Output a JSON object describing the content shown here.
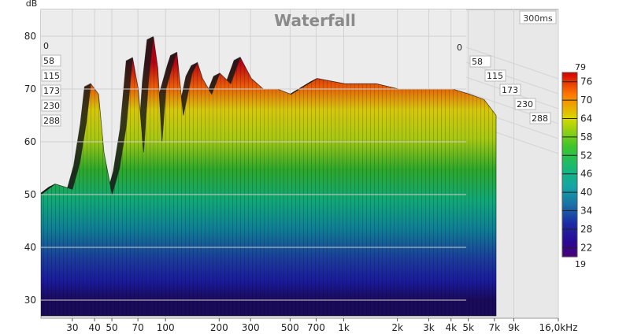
{
  "chart_data": {
    "type": "area",
    "title": "Waterfall",
    "time_window": "300ms",
    "ylabel": "dB",
    "ylim": [
      25,
      83
    ],
    "y_ticks": [
      "30",
      "40",
      "50",
      "60",
      "70",
      "80"
    ],
    "x_scale": "log",
    "xlim_hz": [
      20,
      16000
    ],
    "x_ticks": [
      {
        "label": "30",
        "hz": 30
      },
      {
        "label": "40",
        "hz": 40
      },
      {
        "label": "50",
        "hz": 50
      },
      {
        "label": "70",
        "hz": 70
      },
      {
        "label": "100",
        "hz": 100
      },
      {
        "label": "200",
        "hz": 200
      },
      {
        "label": "300",
        "hz": 300
      },
      {
        "label": "500",
        "hz": 500
      },
      {
        "label": "700",
        "hz": 700
      },
      {
        "label": "1k",
        "hz": 1000
      },
      {
        "label": "2k",
        "hz": 2000
      },
      {
        "label": "3k",
        "hz": 3000
      },
      {
        "label": "4k",
        "hz": 4000
      },
      {
        "label": "5k",
        "hz": 5000
      },
      {
        "label": "7k",
        "hz": 7000
      },
      {
        "label": "9k",
        "hz": 9000
      },
      {
        "label": "16,0kHz",
        "hz": 16000
      }
    ],
    "time_ticks_left": [
      "0",
      "58",
      "115",
      "173",
      "230",
      "288"
    ],
    "time_ticks_right": [
      "0",
      "58",
      "115",
      "173",
      "230",
      "288"
    ],
    "colorbar": {
      "max_label": "79",
      "min_label": "19",
      "range": [
        19,
        79
      ],
      "ticks": [
        "76",
        "70",
        "64",
        "58",
        "52",
        "46",
        "40",
        "34",
        "28",
        "22"
      ]
    },
    "front_slice": {
      "x_hz": [
        20,
        24,
        30,
        33,
        36,
        38,
        42,
        45,
        50,
        55,
        60,
        65,
        70,
        75,
        80,
        85,
        90,
        95,
        100,
        110,
        115,
        125,
        140,
        150,
        160,
        180,
        200,
        230,
        260,
        300,
        350,
        420,
        500,
        700,
        1000,
        1500,
        2000,
        3000,
        4000,
        5000,
        6000,
        7000
      ],
      "y_db": [
        50,
        52,
        51,
        56,
        64,
        71,
        69,
        58,
        50,
        55,
        63,
        76,
        70,
        58,
        72,
        80,
        74,
        60,
        70,
        75,
        77,
        65,
        73,
        75,
        72,
        69,
        73,
        71,
        76,
        72,
        70,
        70,
        69,
        72,
        71,
        71,
        70,
        70,
        70,
        69,
        68,
        65
      ]
    }
  }
}
